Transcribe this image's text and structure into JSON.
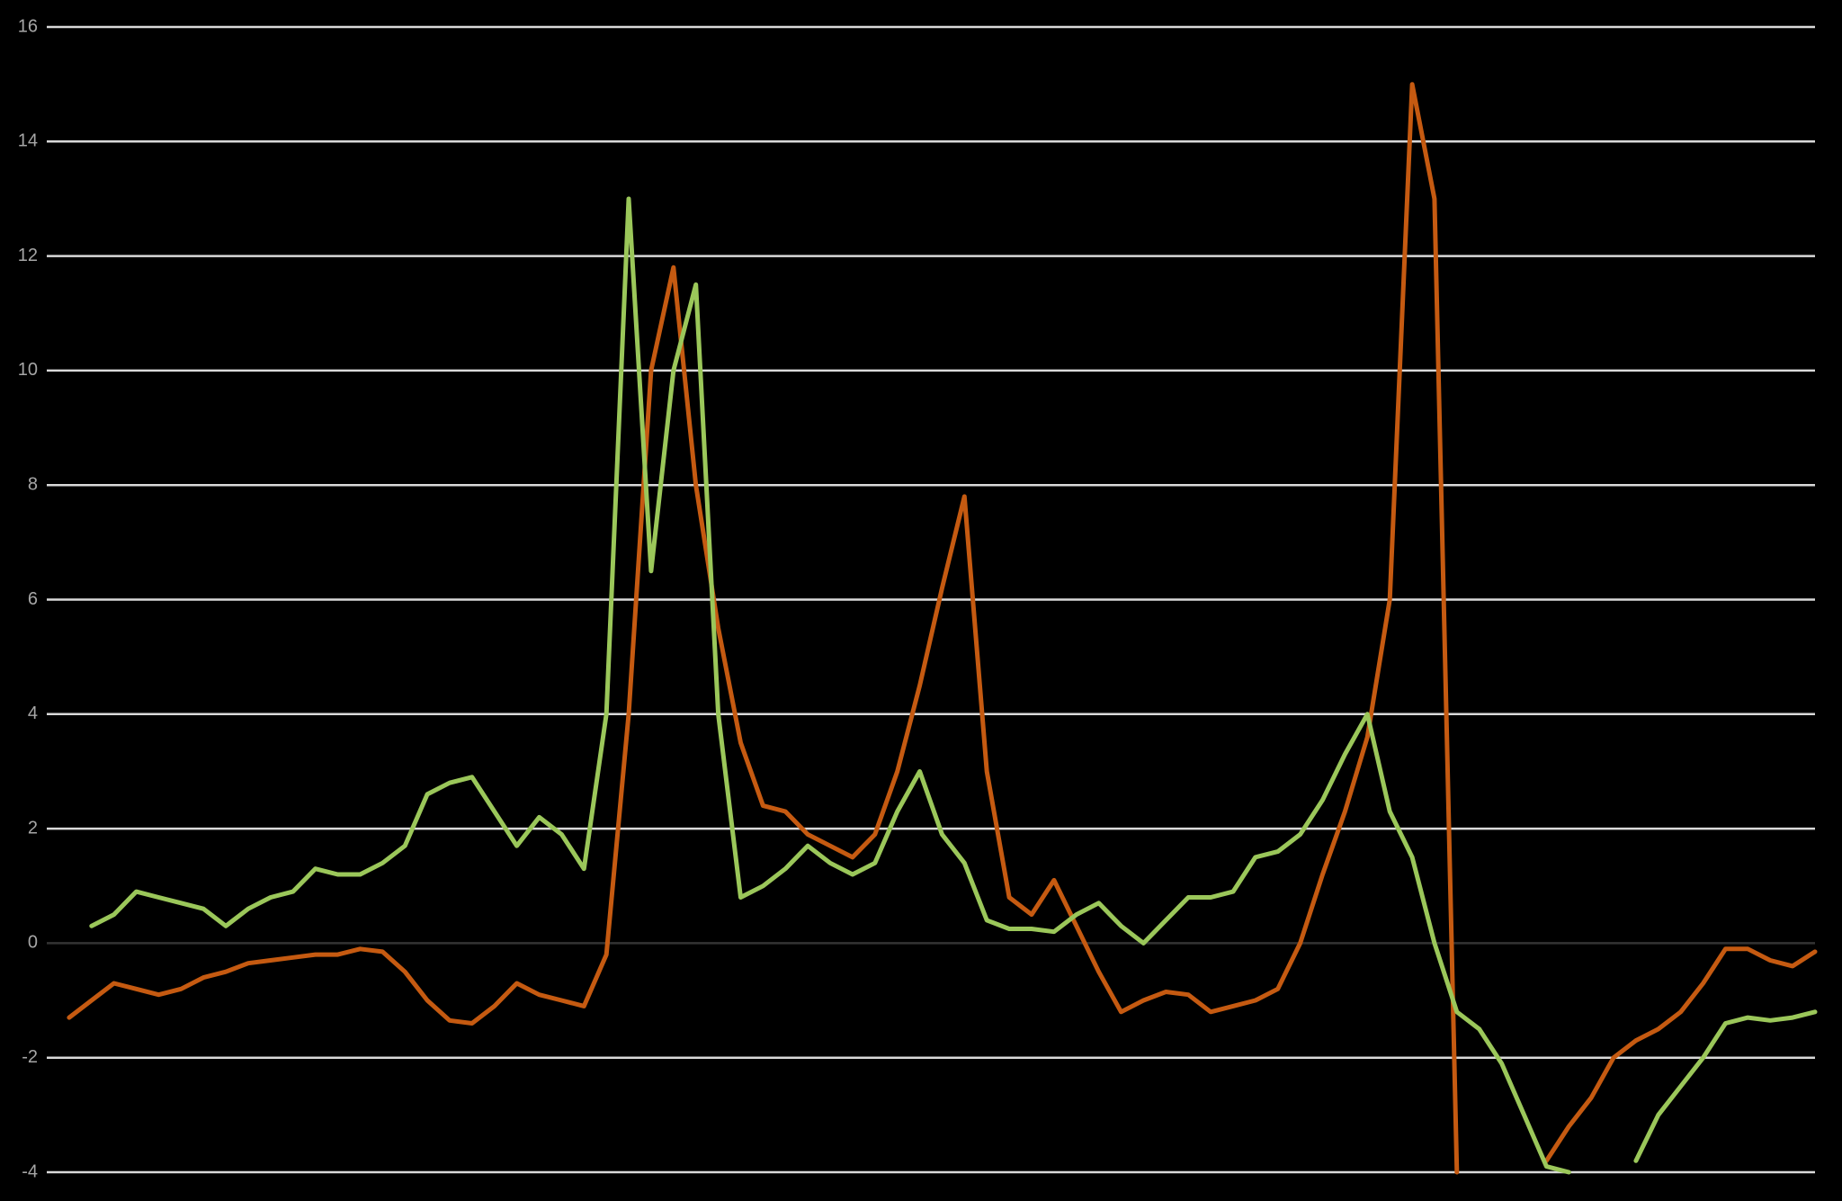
{
  "chart_data": {
    "type": "line",
    "categories": [
      null,
      null,
      null,
      null,
      null,
      null,
      null,
      null,
      null,
      null,
      null,
      null,
      null,
      null,
      null,
      null,
      null,
      null,
      null,
      null,
      null,
      null,
      null,
      null,
      null,
      null,
      null,
      null,
      null,
      null,
      null,
      null,
      null,
      null,
      null,
      null,
      null,
      null,
      null,
      null,
      null,
      null,
      null,
      null,
      null,
      null,
      null,
      null,
      null,
      null,
      null,
      null,
      null,
      null,
      null,
      null,
      null,
      null,
      null,
      null,
      null,
      null,
      null,
      null,
      null,
      null,
      null,
      null,
      null,
      null,
      null,
      null,
      null,
      null,
      null,
      null,
      null,
      null,
      null,
      null
    ],
    "series": [
      {
        "color": "#c55a11",
        "values": [
          null,
          -1.3,
          -1.0,
          -0.7,
          -0.8,
          -0.9,
          -0.8,
          -0.6,
          -0.5,
          -0.35,
          -0.3,
          -0.25,
          -0.2,
          -0.2,
          -0.1,
          -0.15,
          -0.5,
          -1.0,
          -1.35,
          -1.4,
          -1.1,
          -0.7,
          -0.9,
          -1.0,
          -1.1,
          -0.2,
          4.0,
          10.0,
          11.8,
          8.0,
          5.5,
          3.5,
          2.4,
          2.3,
          1.9,
          1.7,
          1.5,
          1.9,
          3.0,
          4.5,
          6.2,
          7.8,
          3.0,
          0.8,
          0.5,
          1.1,
          0.3,
          -0.5,
          -1.2,
          -1.0,
          -0.85,
          -0.9,
          -1.2,
          -1.1,
          -1.0,
          -0.8,
          0.0,
          1.2,
          2.3,
          3.6,
          6.0,
          15.0,
          13.0,
          -4,
          null,
          null,
          null,
          -3.8,
          -3.2,
          -2.7,
          -2.0,
          -1.7,
          -1.5,
          -1.2,
          -0.7,
          -0.1,
          -0.1,
          -0.3,
          -0.4,
          -0.15
        ]
      },
      {
        "color": "#9bc75a",
        "values": [
          null,
          null,
          0.3,
          0.5,
          0.9,
          0.8,
          0.7,
          0.6,
          0.3,
          0.6,
          0.8,
          0.9,
          1.3,
          1.2,
          1.2,
          1.4,
          1.7,
          2.6,
          2.8,
          2.9,
          2.3,
          1.7,
          2.2,
          1.9,
          1.3,
          4.0,
          13.0,
          6.5,
          10.0,
          11.5,
          4.0,
          0.8,
          1.0,
          1.3,
          1.7,
          1.4,
          1.2,
          1.4,
          2.3,
          3.0,
          1.9,
          1.4,
          0.4,
          0.25,
          0.25,
          0.2,
          0.5,
          0.7,
          0.3,
          0.0,
          0.4,
          0.8,
          0.8,
          0.9,
          1.5,
          1.6,
          1.9,
          2.5,
          3.3,
          4.0,
          2.3,
          1.5,
          0.0,
          -1.2,
          -1.5,
          -2.1,
          -3.0,
          -3.9,
          -4.0,
          null,
          null,
          -3.8,
          -3.0,
          -2.5,
          -2.0,
          -1.4,
          -1.3,
          -1.35,
          -1.3,
          -1.2
        ]
      }
    ],
    "ylim": [
      -4,
      16
    ],
    "yticks": [
      -4,
      -2,
      0,
      2,
      4,
      6,
      8,
      10,
      12,
      14,
      16
    ],
    "grid": true
  }
}
